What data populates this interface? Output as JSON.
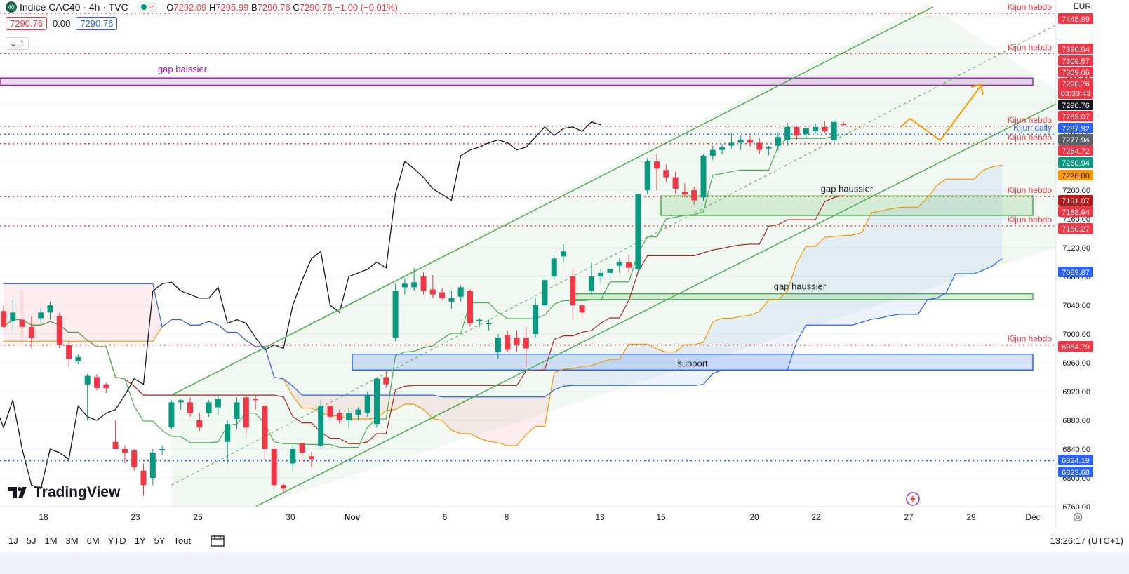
{
  "header": {
    "symbol_badge": "40",
    "title": "Indice CAC40 · 4h · TVC",
    "open_label": "O",
    "open": "7292.09",
    "high_label": "H",
    "high": "7295.99",
    "low_label": "B",
    "low": "7290.76",
    "close_label": "C",
    "close": "7290.76",
    "change": "−1.00 (−0.01%)",
    "bid": "7290.76",
    "spread": "0.00",
    "ask": "7290.76",
    "indicator_count": "1",
    "currency": "EUR"
  },
  "branding": {
    "logo": "TradingView"
  },
  "toolbar": {
    "timeframes": [
      "1J",
      "5J",
      "1M",
      "3M",
      "6M",
      "YTD",
      "1Y",
      "5Y",
      "Tout"
    ],
    "clock": "13:26:17 (UTC+1)"
  },
  "colors": {
    "up": "#089981",
    "down": "#f23645",
    "channel": "#4caf50",
    "kijun": "#f23645",
    "gap_bear": "#9c27b0",
    "support": "#2962ff",
    "cloud_up": "#2962ff",
    "cloud_down": "#f23645",
    "senkou_a": "#ff9800",
    "kijun_line": "#b71c1c",
    "tenkan": "#4caf50",
    "lagging": "#131722"
  },
  "chart_data": {
    "type": "candlestick",
    "ylim": [
      6760,
      7445
    ],
    "x_ticks": [
      "18",
      "23",
      "25",
      "30",
      "Nov",
      "6",
      "8",
      "13",
      "15",
      "20",
      "22",
      "27",
      "29",
      "Déc"
    ],
    "y_ticks": [
      6760,
      6800,
      6840,
      6880,
      6920,
      6960,
      7000,
      7040,
      7080,
      7120,
      7160,
      7200,
      7240,
      7280,
      7320,
      7360,
      7400,
      7440
    ],
    "candles": [
      [
        7032,
        7040,
        7008,
        7010
      ],
      [
        7018,
        7048,
        7000,
        7030
      ],
      [
        7020,
        7060,
        6990,
        7010
      ],
      [
        7010,
        7025,
        6980,
        6995
      ],
      [
        7022,
        7036,
        7014,
        7030
      ],
      [
        7030,
        7045,
        7020,
        7040
      ],
      [
        7025,
        7030,
        6980,
        6985
      ],
      [
        6985,
        6992,
        6955,
        6965
      ],
      [
        6962,
        6972,
        6958,
        6968
      ],
      [
        6930,
        6945,
        6880,
        6942
      ],
      [
        6940,
        6944,
        6922,
        6925
      ],
      [
        6930,
        6932,
        6918,
        6925
      ],
      [
        6850,
        6880,
        6840,
        6840
      ],
      [
        6840,
        6845,
        6820,
        6835
      ],
      [
        6838,
        6840,
        6810,
        6815
      ],
      [
        6810,
        6820,
        6775,
        6790
      ],
      [
        6800,
        6840,
        6790,
        6835
      ],
      [
        6840,
        6845,
        6832,
        6840
      ],
      [
        6870,
        6908,
        6868,
        6905
      ],
      [
        6905,
        6910,
        6895,
        6908
      ],
      [
        6905,
        6912,
        6885,
        6890
      ],
      [
        6880,
        6890,
        6865,
        6870
      ],
      [
        6890,
        6908,
        6885,
        6905
      ],
      [
        6898,
        6915,
        6888,
        6910
      ],
      [
        6850,
        6880,
        6820,
        6875
      ],
      [
        6882,
        6912,
        6868,
        6905
      ],
      [
        6912,
        6915,
        6860,
        6870
      ],
      [
        6910,
        6915,
        6895,
        6908
      ],
      [
        6900,
        6905,
        6825,
        6840
      ],
      [
        6840,
        6845,
        6785,
        6790
      ],
      [
        6790,
        6792,
        6778,
        6785
      ],
      [
        6820,
        6848,
        6810,
        6840
      ],
      [
        6848,
        6850,
        6820,
        6835
      ],
      [
        6830,
        6836,
        6815,
        6826
      ],
      [
        6845,
        6910,
        6840,
        6900
      ],
      [
        6900,
        6910,
        6880,
        6885
      ],
      [
        6890,
        6895,
        6875,
        6880
      ],
      [
        6880,
        6898,
        6870,
        6890
      ],
      [
        6888,
        6898,
        6880,
        6895
      ],
      [
        6890,
        6920,
        6885,
        6915
      ],
      [
        6875,
        6940,
        6870,
        6938
      ],
      [
        6940,
        6950,
        6925,
        6930
      ],
      [
        6995,
        7070,
        6990,
        7060
      ],
      [
        7065,
        7078,
        7055,
        7070
      ],
      [
        7065,
        7092,
        7060,
        7072
      ],
      [
        7080,
        7086,
        7055,
        7060
      ],
      [
        7062,
        7082,
        7050,
        7055
      ],
      [
        7058,
        7064,
        7048,
        7050
      ],
      [
        7045,
        7060,
        7035,
        7050
      ],
      [
        7052,
        7068,
        7045,
        7065
      ],
      [
        7060,
        7062,
        7010,
        7015
      ],
      [
        7018,
        7022,
        7010,
        7020
      ],
      [
        7014,
        7020,
        7005,
        7015
      ],
      [
        6975,
        7000,
        6965,
        6995
      ],
      [
        6998,
        7005,
        6975,
        6978
      ],
      [
        6995,
        7005,
        6975,
        6985
      ],
      [
        6995,
        7010,
        6955,
        6980
      ],
      [
        7000,
        7050,
        6995,
        7040
      ],
      [
        7040,
        7080,
        7038,
        7075
      ],
      [
        7080,
        7110,
        7075,
        7105
      ],
      [
        7108,
        7125,
        7100,
        7115
      ],
      [
        7080,
        7090,
        7020,
        7040
      ],
      [
        7040,
        7045,
        7020,
        7030
      ],
      [
        7060,
        7100,
        7055,
        7080
      ],
      [
        7080,
        7090,
        7070,
        7085
      ],
      [
        7085,
        7095,
        7075,
        7090
      ],
      [
        7095,
        7105,
        7085,
        7100
      ],
      [
        7100,
        7110,
        7085,
        7092
      ],
      [
        7090,
        7195,
        7085,
        7195
      ],
      [
        7200,
        7245,
        7195,
        7240
      ],
      [
        7240,
        7250,
        7200,
        7230
      ],
      [
        7228,
        7236,
        7212,
        7218
      ],
      [
        7218,
        7225,
        7195,
        7202
      ],
      [
        7198,
        7210,
        7190,
        7194
      ],
      [
        7200,
        7205,
        7180,
        7186
      ],
      [
        7190,
        7250,
        7185,
        7248
      ],
      [
        7248,
        7262,
        7242,
        7256
      ],
      [
        7256,
        7264,
        7250,
        7260
      ],
      [
        7262,
        7280,
        7258,
        7266
      ],
      [
        7266,
        7276,
        7256,
        7270
      ],
      [
        7270,
        7276,
        7260,
        7266
      ],
      [
        7266,
        7272,
        7250,
        7256
      ],
      [
        7258,
        7262,
        7248,
        7260
      ],
      [
        7262,
        7280,
        7255,
        7274
      ],
      [
        7270,
        7294,
        7262,
        7288
      ],
      [
        7288,
        7290,
        7270,
        7276
      ],
      [
        7278,
        7290,
        7272,
        7286
      ],
      [
        7282,
        7292,
        7278,
        7288
      ],
      [
        7288,
        7296,
        7280,
        7282
      ],
      [
        7270,
        7300,
        7265,
        7295
      ],
      [
        7292,
        7296,
        7290,
        7291
      ]
    ],
    "horizontal_levels": [
      {
        "label": "Kijun hebdo",
        "value": 7445.99,
        "price_tag": "7445.99"
      },
      {
        "label": "Kijun hebdo",
        "value": 7390.04,
        "price_tag": "7390.04"
      },
      {
        "label": "Kijun hebdo",
        "value": 7289.07,
        "price_tag": "7289.07"
      },
      {
        "label": "Kijun daily",
        "value": 7277.94,
        "price_tag": "7277.94"
      },
      {
        "label": "Kijun hebdo",
        "value": 7264.72,
        "price_tag": "7264.72"
      },
      {
        "label": "Kijun hebdo",
        "value": 7191.07,
        "price_tag": "7191.07"
      },
      {
        "label": "Kijun hebdo",
        "value": 7150.27,
        "price_tag": "7150.27"
      },
      {
        "label": "Kijun hebdo",
        "value": 6984.79,
        "price_tag": "6984.79"
      },
      {
        "label": "",
        "value": 6824.19,
        "price_tag": "6824.19"
      }
    ],
    "zones": [
      {
        "label": "gap baissier",
        "from": 7346,
        "to": 7356
      },
      {
        "label": "gap haussier",
        "from": 7165,
        "to": 7192
      },
      {
        "label": "gap haussier",
        "from": 7048,
        "to": 7056
      },
      {
        "label": "support",
        "from": 6950,
        "to": 6972
      }
    ],
    "price_tags": [
      {
        "value": "7309.57"
      },
      {
        "value": "7309.06"
      },
      {
        "value": "7290.76",
        "sub": "03:33:43"
      },
      {
        "value": "7290.76"
      },
      {
        "value": "7287.92"
      },
      {
        "value": "7260.94"
      },
      {
        "value": "7226.00"
      },
      {
        "value": "7188.94"
      },
      {
        "value": "7089.87"
      },
      {
        "value": "6823.68"
      }
    ]
  }
}
